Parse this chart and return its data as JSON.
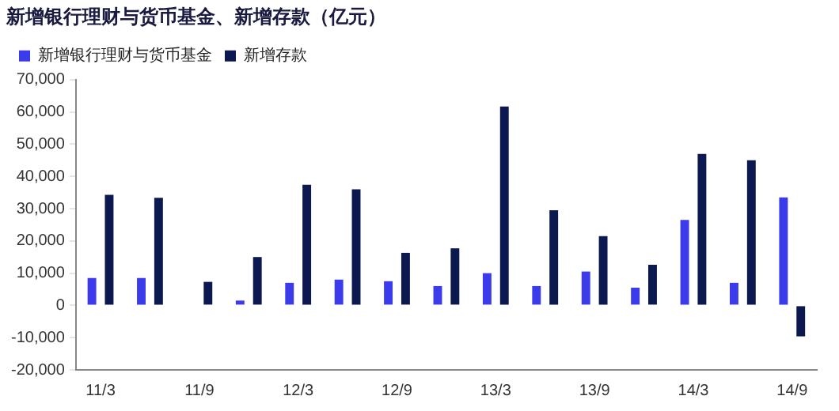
{
  "chart_data": {
    "type": "bar",
    "title": "新增银行理财与货币基金、新增存款（亿元）",
    "categories": [
      "11/3",
      null,
      "11/9",
      null,
      "12/3",
      null,
      "12/9",
      null,
      "13/3",
      null,
      "13/9",
      null,
      "14/3",
      null,
      "14/9"
    ],
    "series": [
      {
        "name": "新增银行理财与货币基金",
        "color": "#3b3bec",
        "values": [
          8500,
          8500,
          0,
          1500,
          7000,
          8000,
          7500,
          6000,
          10000,
          6000,
          10500,
          5500,
          26500,
          7000,
          33500
        ]
      },
      {
        "name": "新增存款",
        "color": "#0c1850",
        "values": [
          34300,
          33400,
          7300,
          15000,
          37400,
          36000,
          16300,
          17700,
          61700,
          29500,
          21500,
          12600,
          47000,
          45000,
          -9600
        ]
      }
    ],
    "ylim": [
      -20000,
      70000
    ],
    "yticks": [
      {
        "value": -20000,
        "label": "-20,000"
      },
      {
        "value": -10000,
        "label": "-10,000"
      },
      0,
      {
        "value": 10000,
        "label": "10,000"
      },
      {
        "value": 20000,
        "label": "20,000"
      },
      {
        "value": 30000,
        "label": "30,000"
      },
      {
        "value": 40000,
        "label": "40,000"
      },
      {
        "value": 50000,
        "label": "50,000"
      },
      {
        "value": 60000,
        "label": "60,000"
      },
      {
        "value": 70000,
        "label": "70,000"
      }
    ],
    "grid": false,
    "legend": "top left"
  }
}
